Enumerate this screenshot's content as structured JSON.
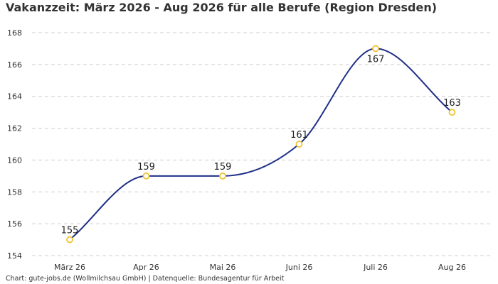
{
  "chart_data": {
    "type": "line",
    "title": "Vakanzzeit: März 2026 - Aug 2026 für alle Berufe (Region Dresden)",
    "categories": [
      "März 26",
      "Apr 26",
      "Mai 26",
      "Juni 26",
      "Juli 26",
      "Aug 26"
    ],
    "values": [
      155,
      159,
      159,
      161,
      167,
      163
    ],
    "ylim": [
      154,
      168
    ],
    "yticks": [
      154,
      156,
      158,
      160,
      162,
      164,
      166,
      168
    ],
    "grid": true,
    "line_color": "#1f2f87",
    "marker_color": "#f2c232",
    "source": "Chart: gute-jobs.de (Wollmilchsau GmbH) | Datenquelle: Bundesagentur für Arbeit"
  }
}
